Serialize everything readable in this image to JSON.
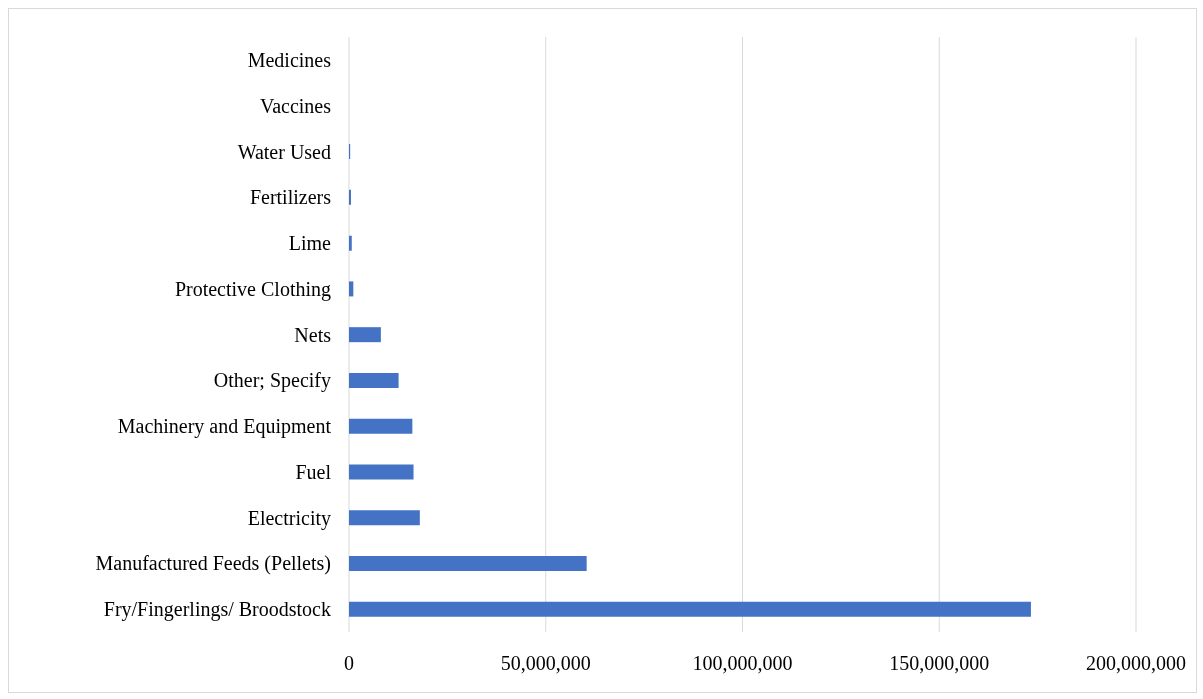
{
  "chart_data": {
    "type": "bar",
    "orientation": "horizontal",
    "categories": [
      "Medicines",
      "Vaccines",
      "Water Used",
      "Fertilizers",
      "Lime",
      "Protective Clothing",
      "Nets",
      "Other; Specify",
      "Machinery and Equipment",
      "Fuel",
      "Electricity",
      "Manufactured Feeds (Pellets)",
      "Fry/Fingerlings/ Broodstock"
    ],
    "values": [
      0,
      0,
      300000,
      500000,
      700000,
      1100000,
      8100000,
      12600000,
      16100000,
      16400000,
      18000000,
      60400000,
      173300000
    ],
    "color": "#4472c4",
    "xlim": [
      0,
      200000000
    ],
    "xticks": [
      {
        "value": 0,
        "label": "0"
      },
      {
        "value": 50000000,
        "label": "50,000,000"
      },
      {
        "value": 100000000,
        "label": "100,000,000"
      },
      {
        "value": 150000000,
        "label": "150,000,000"
      },
      {
        "value": 200000000,
        "label": "200,000,000"
      }
    ],
    "grid": "x",
    "legend": false
  }
}
